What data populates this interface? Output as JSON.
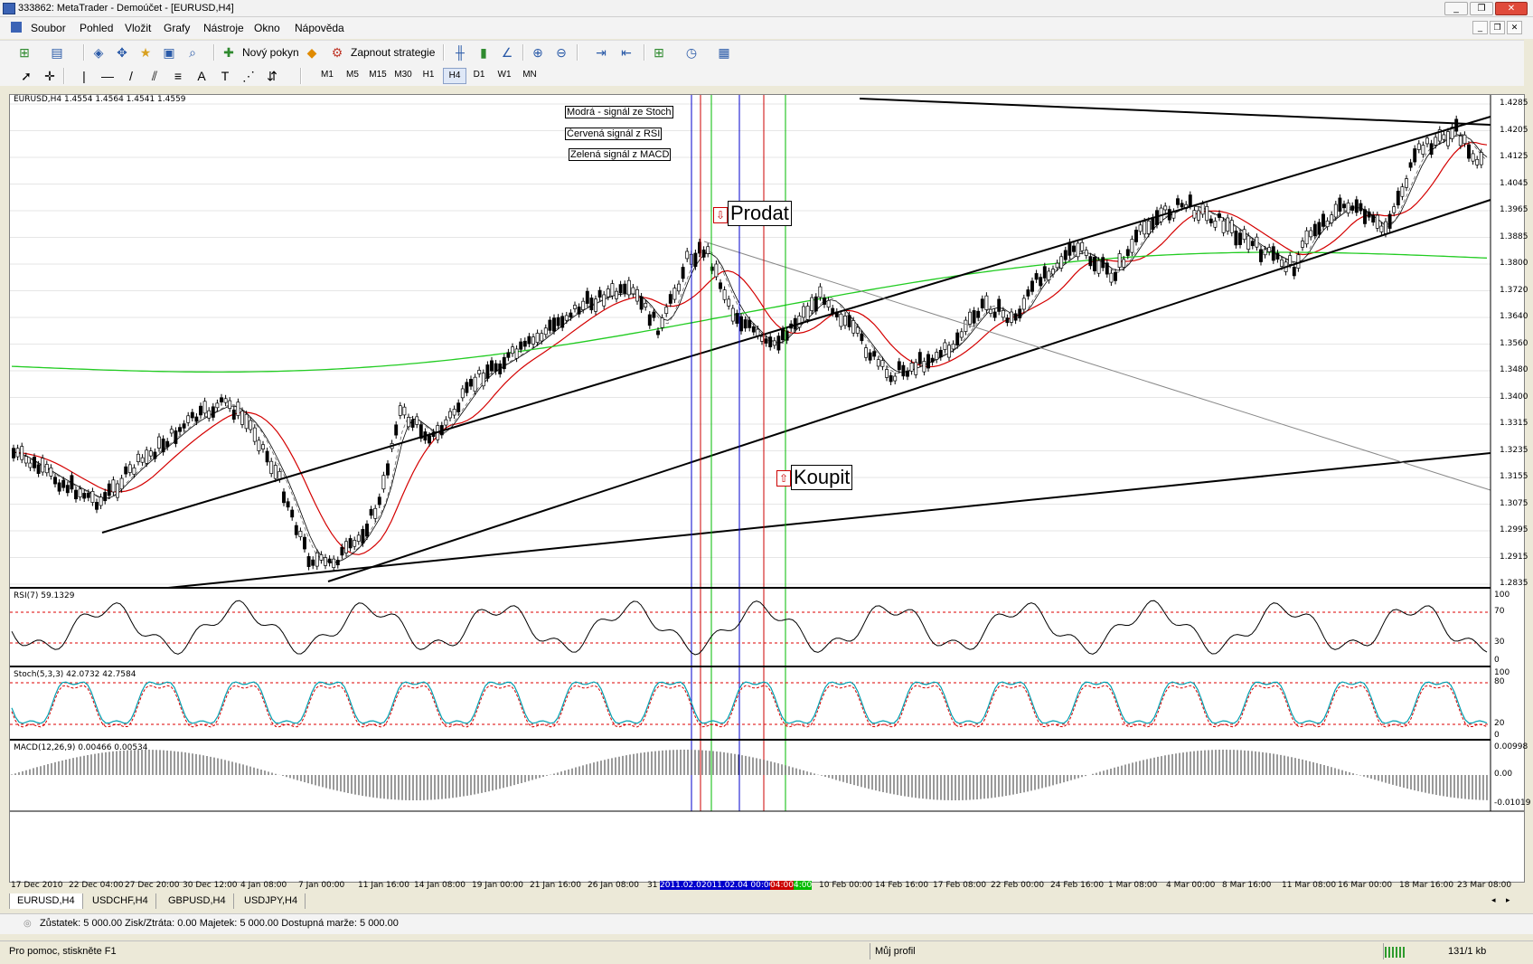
{
  "window": {
    "title": "333862: MetaTrader - Demoúčet - [EURUSD,H4]"
  },
  "menu": [
    "Soubor",
    "Pohled",
    "Vložit",
    "Grafy",
    "Nástroje",
    "Okno",
    "Nápověda"
  ],
  "toolbar": {
    "new_order": "Nový pokyn",
    "strategy": "Zapnout strategie"
  },
  "timeframes": [
    "M1",
    "M5",
    "M15",
    "M30",
    "H1",
    "H4",
    "D1",
    "W1",
    "MN"
  ],
  "chart": {
    "header": "EURUSD,H4  1.4554 1.4564 1.4541 1.4559",
    "price_ticks": [
      "1.4285",
      "1.4205",
      "1.4125",
      "1.4045",
      "1.3965",
      "1.3885",
      "1.3800",
      "1.3720",
      "1.3640",
      "1.3560",
      "1.3480",
      "1.3400",
      "1.3315",
      "1.3235",
      "1.3155",
      "1.3075",
      "1.2995",
      "1.2915",
      "1.2835"
    ],
    "time_ticks": [
      "17 Dec 2010",
      "22 Dec 04:00",
      "27 Dec 20:00",
      "30 Dec 12:00",
      "4 Jan 08:00",
      "7 Jan 00:00",
      "11 Jan 16:00",
      "14 Jan 08:00",
      "19 Jan 00:00",
      "21 Jan 16:00",
      "26 Jan 08:00",
      "31",
      "2011.02.0",
      "2011.02.04 00:00",
      "04:00",
      "4:00",
      "10 Feb 00:00",
      "14 Feb 16:00",
      "17 Feb 08:00",
      "22 Feb 00:00",
      "24 Feb 16:00",
      "1 Mar 08:00",
      "4 Mar 00:00",
      "8 Mar 16:00",
      "11 Mar 08:00",
      "16 Mar 00:00",
      "18 Mar 16:00",
      "23 Mar 08:00"
    ],
    "notes": [
      "Modrá - signál ze Stoch",
      "Červená signál z RSI",
      "Zelená signál z MACD"
    ],
    "sell_label": "Prodat",
    "buy_label": "Koupit"
  },
  "rsi": {
    "header": "RSI(7) 59.1329",
    "ticks": [
      "100",
      "70",
      "30",
      "0"
    ]
  },
  "stoch": {
    "header": "Stoch(5,3,3) 42.0732 42.7584",
    "ticks": [
      "100",
      "80",
      "20",
      "0"
    ]
  },
  "macd": {
    "header": "MACD(12,26,9) 0.00466 0.00534",
    "ticks": [
      "0.00998",
      "0.00",
      "-0.01019"
    ]
  },
  "tabs": [
    "EURUSD,H4",
    "USDCHF,H4",
    "GBPUSD,H4",
    "USDJPY,H4"
  ],
  "account": "Zůstatek: 5 000.00  Zisk/Ztráta: 0.00  Majetek: 5 000.00  Dostupná marže: 5 000.00",
  "status": {
    "help": "Pro pomoc, stiskněte F1",
    "profile": "Můj profil",
    "traffic": "131/1 kb"
  }
}
